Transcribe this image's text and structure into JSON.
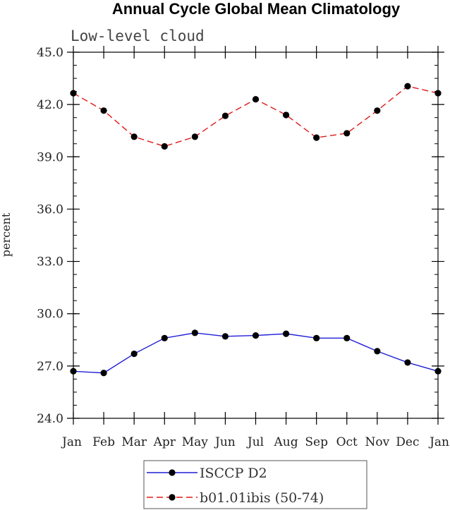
{
  "chart_data": {
    "type": "line",
    "title": "Annual Cycle Global Mean Climatology",
    "subtitle": "Low-level cloud",
    "xlabel": "",
    "ylabel": "percent",
    "categories": [
      "Jan",
      "Feb",
      "Mar",
      "Apr",
      "May",
      "Jun",
      "Jul",
      "Aug",
      "Sep",
      "Oct",
      "Nov",
      "Dec",
      "Jan"
    ],
    "ylim": [
      24.0,
      45.0
    ],
    "yticks": [
      "24.0",
      "27.0",
      "30.0",
      "33.0",
      "36.0",
      "39.0",
      "42.0",
      "45.0"
    ],
    "grid": false,
    "legend_position": "bottom",
    "series": [
      {
        "name": "ISCCP D2",
        "color": "#1f1fd6",
        "dash": "solid",
        "values": [
          26.7,
          26.6,
          27.7,
          28.6,
          28.9,
          28.7,
          28.75,
          28.85,
          28.6,
          28.6,
          27.85,
          27.2,
          26.7
        ]
      },
      {
        "name": "b01.01ibis (50-74)",
        "color": "#e01a1a",
        "dash": "dashed",
        "values": [
          42.65,
          41.65,
          40.15,
          39.6,
          40.15,
          41.35,
          42.3,
          41.4,
          40.1,
          40.35,
          41.65,
          43.05,
          42.65
        ]
      }
    ]
  }
}
